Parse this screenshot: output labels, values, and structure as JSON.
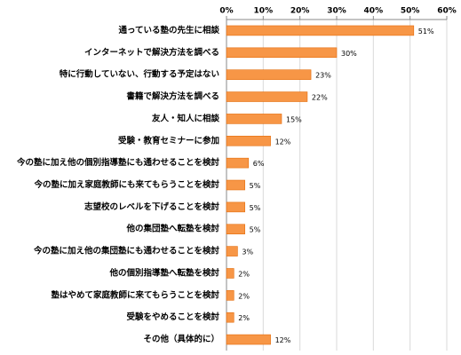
{
  "chart_data": {
    "type": "bar",
    "orientation": "horizontal",
    "categories": [
      "通っている塾の先生に相談",
      "インターネットで解決方法を調べる",
      "特に行動していない、行動する予定はない",
      "書籍で解決方法を調べる",
      "友人・知人に相談",
      "受験・教育セミナーに参加",
      "今の塾に加え他の個別指導塾にも通わせることを検討",
      "今の塾に加え家庭教師にも来てもらうことを検討",
      "志望校のレベルを下げることを検討",
      "他の集団塾へ転塾を検討",
      "今の塾に加え他の集団塾にも通わせることを検討",
      "他の個別指導塾へ転塾を検討",
      "塾はやめて家庭教師に来てもらうことを検討",
      "受験をやめることを検討",
      "その他（具体的に）"
    ],
    "values": [
      51,
      30,
      23,
      22,
      15,
      12,
      6,
      5,
      5,
      5,
      3,
      2,
      2,
      2,
      12
    ],
    "value_labels": [
      "51%",
      "30%",
      "23%",
      "22%",
      "15%",
      "12%",
      "6%",
      "5%",
      "5%",
      "5%",
      "3%",
      "2%",
      "2%",
      "2%",
      "12%"
    ],
    "color": "#f79646",
    "xlim": [
      0,
      60
    ],
    "xticks": [
      {
        "value": 0,
        "label": "0%"
      },
      {
        "value": 10,
        "label": "10%"
      },
      {
        "value": 20,
        "label": "20%"
      },
      {
        "value": 30,
        "label": "30%"
      },
      {
        "value": 40,
        "label": "40%"
      },
      {
        "value": 50,
        "label": "50%"
      },
      {
        "value": 60,
        "label": "60%"
      }
    ],
    "grid": true
  }
}
